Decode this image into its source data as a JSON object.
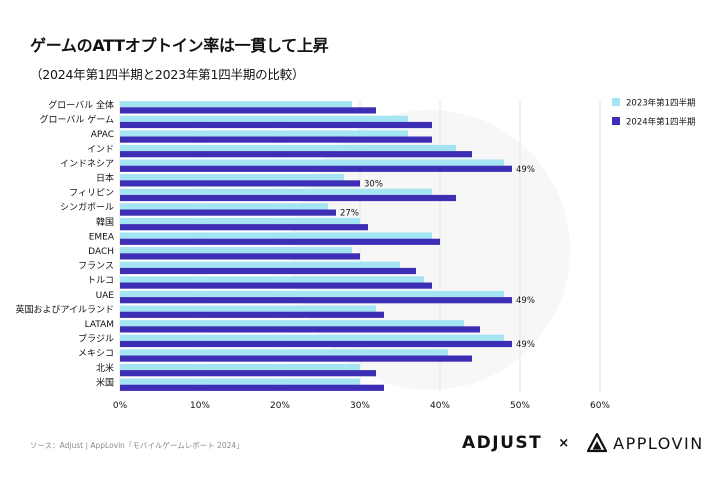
{
  "title": "ゲームのATTオプトイン率は一貫して上昇",
  "subtitle": "（2024年第1四半期と2023年第1四半期の比較）",
  "source": "ソース：Adjust | AppLovin「モバイルゲームレポート 2024」",
  "logos": {
    "adjust": "ADJUST",
    "separator": "×",
    "applovin": "APPLOVIN"
  },
  "colors": {
    "series_2023": "#a4e4f3",
    "series_2024": "#3d2fb5",
    "grid": "#e4e4e4"
  },
  "chart_data": {
    "type": "bar",
    "orientation": "horizontal",
    "title": "ゲームのATTオプトイン率は一貫して上昇",
    "subtitle": "（2024年第1四半期と2023年第1四半期の比較）",
    "categories": [
      "グローバル 全体",
      "グローバル ゲーム",
      "APAC",
      "インド",
      "インドネシア",
      "日本",
      "フィリピン",
      "シンガポール",
      "韓国",
      "EMEA",
      "DACH",
      "フランス",
      "トルコ",
      "UAE",
      "英国およびアイルランド",
      "LATAM",
      "ブラジル",
      "メキシコ",
      "北米",
      "米国"
    ],
    "series": [
      {
        "name": "2023年第1四半期",
        "values": [
          29,
          36,
          36,
          42,
          48,
          28,
          39,
          26,
          30,
          39,
          29,
          35,
          38,
          48,
          32,
          43,
          48,
          41,
          30,
          30
        ]
      },
      {
        "name": "2024年第1四半期",
        "values": [
          32,
          39,
          39,
          44,
          49,
          30,
          42,
          27,
          31,
          40,
          30,
          37,
          39,
          49,
          33,
          45,
          49,
          44,
          32,
          33
        ]
      }
    ],
    "data_labels": [
      {
        "category_index": 4,
        "series_index": 1,
        "text": "49%"
      },
      {
        "category_index": 5,
        "series_index": 1,
        "text": "30%"
      },
      {
        "category_index": 7,
        "series_index": 1,
        "text": "27%"
      },
      {
        "category_index": 13,
        "series_index": 1,
        "text": "49%"
      },
      {
        "category_index": 16,
        "series_index": 1,
        "text": "49%"
      }
    ],
    "xlim": [
      0,
      60
    ],
    "xticks": [
      "0%",
      "10%",
      "20%",
      "30%",
      "40%",
      "50%",
      "60%"
    ],
    "legend_position": "top-right",
    "grid": true
  }
}
